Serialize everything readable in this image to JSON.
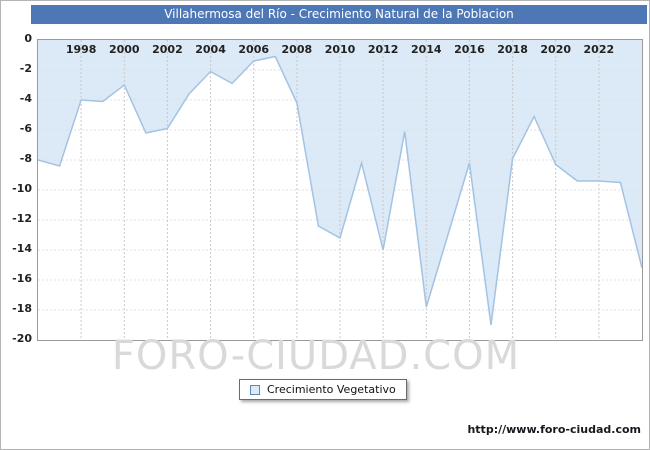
{
  "title": "Villahermosa del Río - Crecimiento Natural de la Poblacion",
  "watermark": "FORO-CIUDAD.COM",
  "legend": {
    "label": "Crecimiento Vegetativo"
  },
  "footer_url": "http://www.foro-ciudad.com",
  "colors": {
    "title_bar": "#4d77b5",
    "area_fill": "#dce9f6",
    "line": "#a3c3e3",
    "marker_border": "#5e87bd",
    "grid_v": "#c8c8c8",
    "grid_h": "#e0e0e0",
    "watermark": "#d9d9d9",
    "axis_text": "#222222"
  },
  "chart_data": {
    "type": "area",
    "title": "Villahermosa del Río - Crecimiento Natural de la Poblacion",
    "xlabel": "",
    "ylabel": "",
    "x": [
      1996,
      1997,
      1998,
      1999,
      2000,
      2001,
      2002,
      2003,
      2004,
      2005,
      2006,
      2007,
      2008,
      2009,
      2010,
      2011,
      2012,
      2013,
      2014,
      2015,
      2016,
      2017,
      2018,
      2019,
      2020,
      2021,
      2022,
      2023,
      2024
    ],
    "series": [
      {
        "name": "Crecimiento Vegetativo",
        "values": [
          -8.0,
          -8.4,
          -4.0,
          -4.1,
          -3.0,
          -6.2,
          -5.9,
          -3.6,
          -2.1,
          -2.9,
          -1.4,
          -1.1,
          -4.2,
          -12.4,
          -13.2,
          -8.2,
          -14.0,
          -6.1,
          -17.8,
          -13.0,
          -8.2,
          -19.0,
          -7.9,
          -5.1,
          -8.3,
          -9.4,
          -9.4,
          -9.5,
          -15.2
        ]
      }
    ],
    "ylim": [
      -20,
      0
    ],
    "yticks": [
      0,
      -2,
      -4,
      -6,
      -8,
      -10,
      -12,
      -14,
      -16,
      -18,
      -20
    ],
    "xtick_labels": [
      "1998",
      "2000",
      "2002",
      "2004",
      "2006",
      "2008",
      "2010",
      "2012",
      "2014",
      "2016",
      "2018",
      "2020",
      "2022"
    ],
    "grid": true,
    "legend_position": "bottom",
    "baseline": 0
  }
}
